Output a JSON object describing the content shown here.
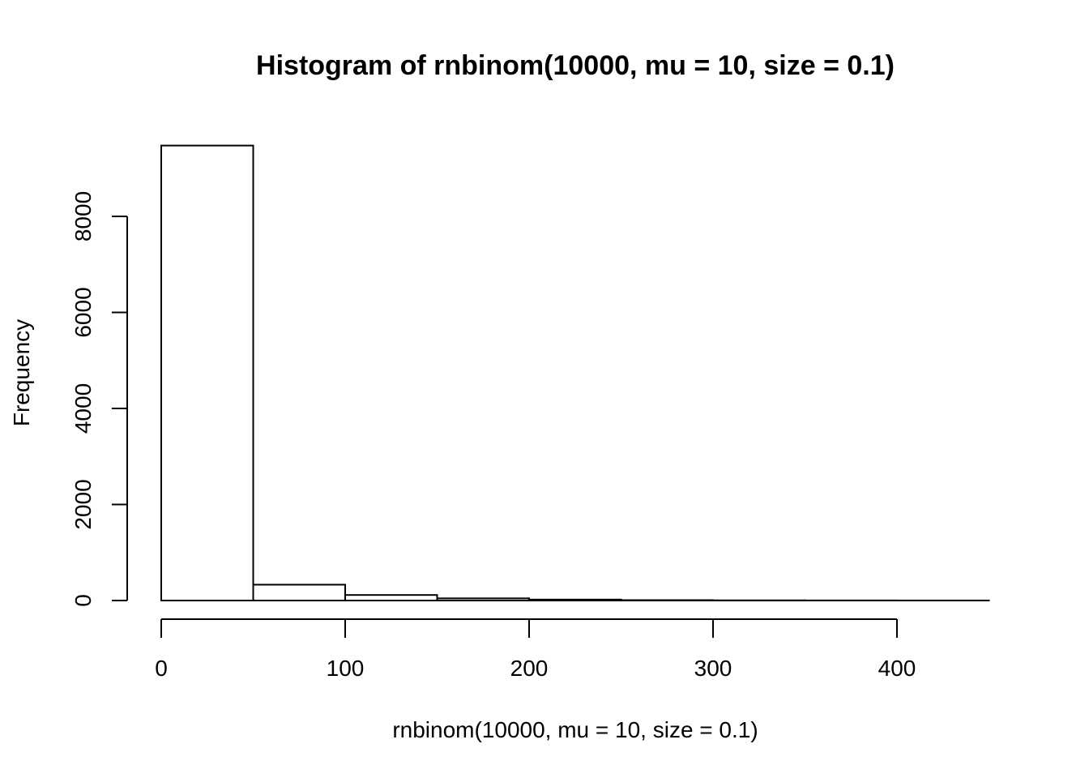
{
  "chart_data": {
    "type": "bar",
    "title": "Histogram of rnbinom(10000, mu = 10, size = 0.1)",
    "xlabel": "rnbinom(10000, mu = 10, size = 0.1)",
    "ylabel": "Frequency",
    "bin_edges": [
      0,
      50,
      100,
      150,
      200,
      250,
      300,
      350,
      400,
      450
    ],
    "values": [
      9475,
      330,
      115,
      45,
      20,
      8,
      4,
      2,
      1
    ],
    "xticks": [
      0,
      100,
      200,
      300,
      400
    ],
    "xtick_labels": [
      "0",
      "100",
      "200",
      "300",
      "400"
    ],
    "yticks": [
      0,
      2000,
      4000,
      6000,
      8000
    ],
    "ytick_labels": [
      "0",
      "2000",
      "4000",
      "6000",
      "8000"
    ],
    "xlim": [
      0,
      450
    ],
    "ylim": [
      0,
      9475
    ],
    "grid": false,
    "legend": "none"
  }
}
